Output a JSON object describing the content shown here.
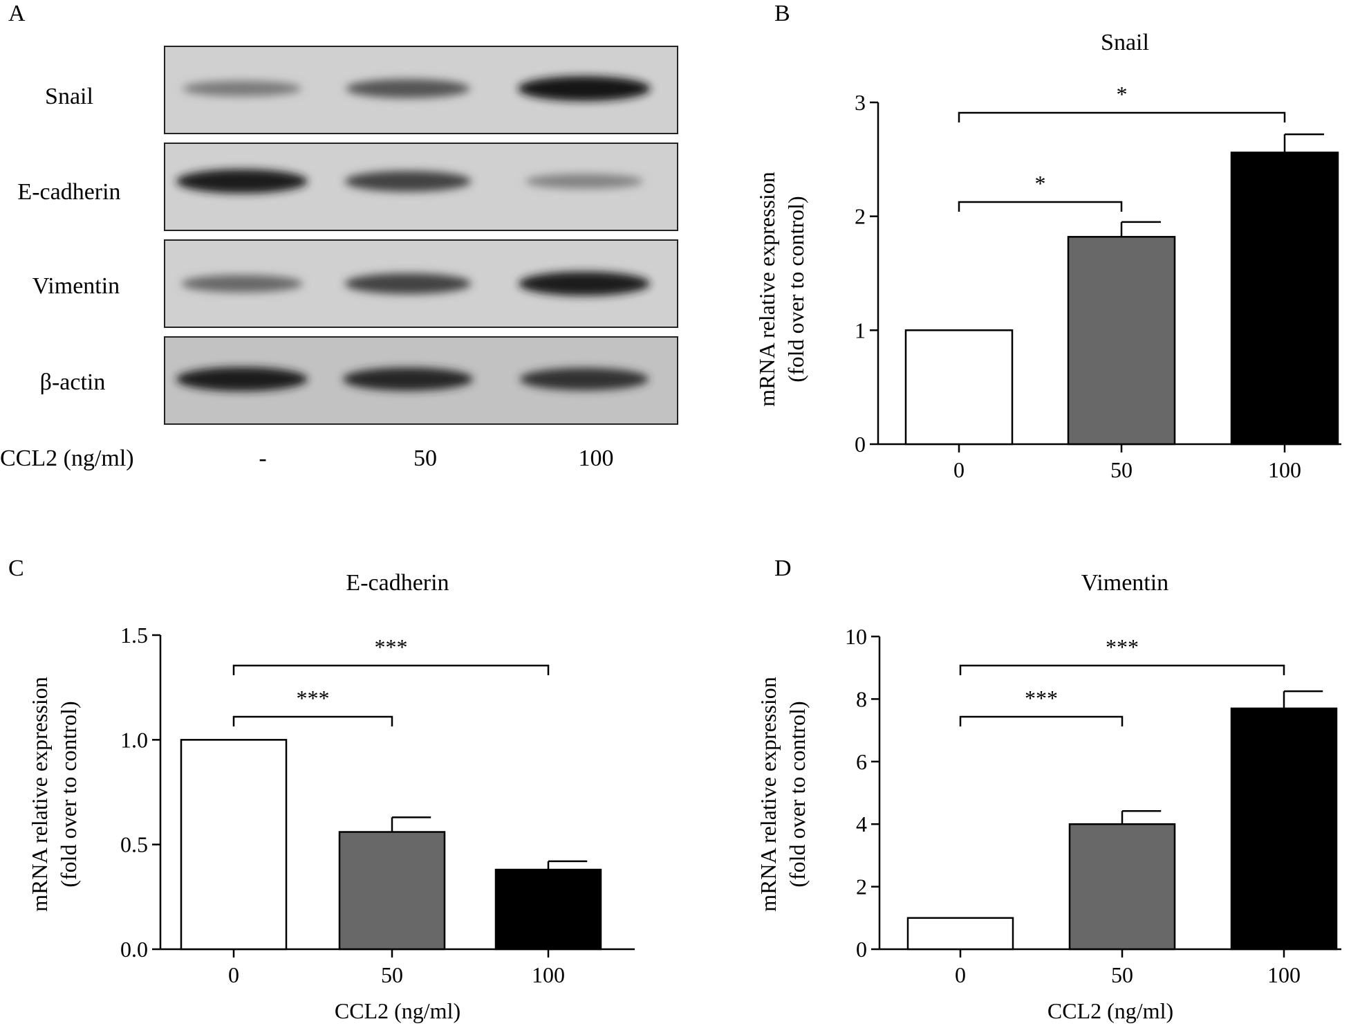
{
  "panels": {
    "a": {
      "letter": "A"
    },
    "b": {
      "letter": "B"
    },
    "c": {
      "letter": "C"
    },
    "d": {
      "letter": "D"
    }
  },
  "western_blot": {
    "rows": [
      {
        "label": "Snail",
        "band_intensity": [
          0.45,
          0.65,
          1.0
        ]
      },
      {
        "label": "E-cadherin",
        "band_intensity": [
          0.95,
          0.75,
          0.4
        ]
      },
      {
        "label": "Vimentin",
        "band_intensity": [
          0.55,
          0.75,
          0.95
        ]
      },
      {
        "label": "β-actin",
        "band_intensity": [
          0.95,
          0.9,
          0.85
        ]
      }
    ],
    "treatment_label": "CCL2 (ng/ml)",
    "lanes": [
      "-",
      "50",
      "100"
    ]
  },
  "chart_data": [
    {
      "type": "bar",
      "title": "Snail",
      "categories": [
        "0",
        "50",
        "100"
      ],
      "values": [
        1.0,
        1.82,
        2.56
      ],
      "errors": [
        0,
        0.13,
        0.16
      ],
      "colors": [
        "#ffffff",
        "#686868",
        "#000000"
      ],
      "xlabel": "",
      "ylabel": [
        "mRNA relative expression",
        "(fold over to control)"
      ],
      "ylim": [
        0,
        3
      ],
      "yticks": [
        "0",
        "1",
        "2",
        "3"
      ],
      "significance": [
        {
          "from": 0,
          "to": 1,
          "label": "*"
        },
        {
          "from": 0,
          "to": 2,
          "label": "*"
        }
      ]
    },
    {
      "type": "bar",
      "title": "E-cadherin",
      "categories": [
        "0",
        "50",
        "100"
      ],
      "values": [
        1.0,
        0.56,
        0.38
      ],
      "errors": [
        0,
        0.07,
        0.04
      ],
      "colors": [
        "#ffffff",
        "#686868",
        "#000000"
      ],
      "xlabel": "CCL2 (ng/ml)",
      "ylabel": [
        "mRNA relative expression",
        "(fold over to control)"
      ],
      "ylim": [
        0,
        1.5
      ],
      "yticks": [
        "0.0",
        "0.5",
        "1.0",
        "1.5"
      ],
      "significance": [
        {
          "from": 0,
          "to": 1,
          "label": "***"
        },
        {
          "from": 0,
          "to": 2,
          "label": "***"
        }
      ]
    },
    {
      "type": "bar",
      "title": "Vimentin",
      "categories": [
        "0",
        "50",
        "100"
      ],
      "values": [
        1.0,
        4.0,
        7.7
      ],
      "errors": [
        0,
        0.42,
        0.55
      ],
      "colors": [
        "#ffffff",
        "#686868",
        "#000000"
      ],
      "xlabel": "CCL2 (ng/ml)",
      "ylabel": [
        "mRNA relative expression",
        "(fold over to control)"
      ],
      "ylim": [
        0,
        10
      ],
      "yticks": [
        "0",
        "2",
        "4",
        "6",
        "8",
        "10"
      ],
      "significance": [
        {
          "from": 0,
          "to": 1,
          "label": "***"
        },
        {
          "from": 0,
          "to": 2,
          "label": "***"
        }
      ]
    }
  ]
}
